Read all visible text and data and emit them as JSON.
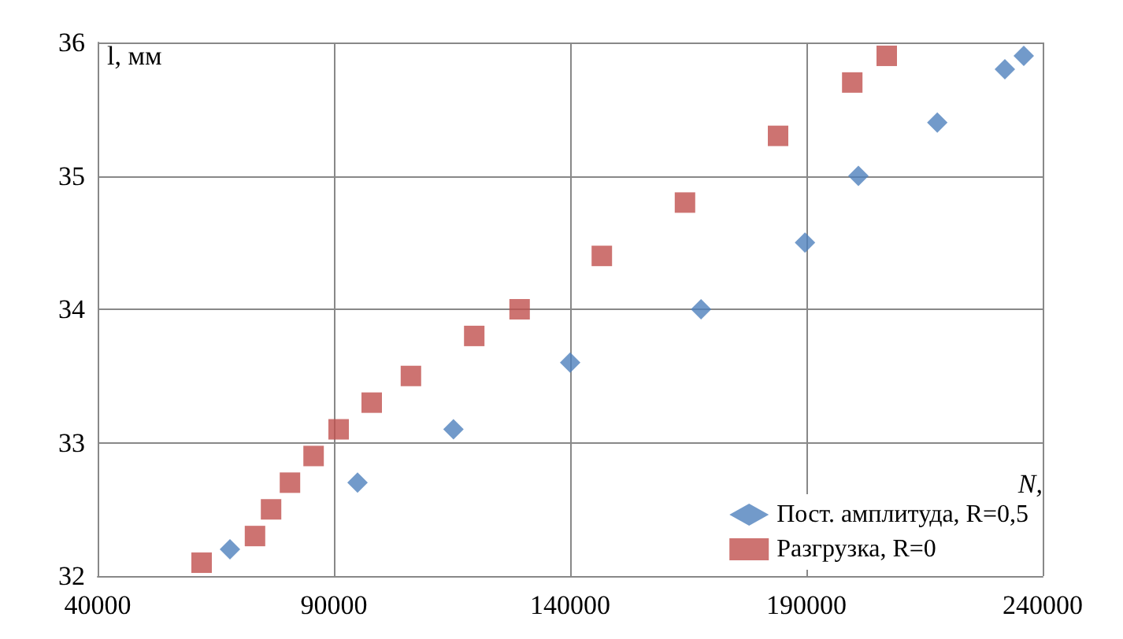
{
  "chart_data": {
    "type": "scatter",
    "xlabel": "N,",
    "ylabel": "l, мм",
    "xlim": [
      40000,
      240000
    ],
    "xticks": [
      40000,
      90000,
      140000,
      190000,
      240000
    ],
    "ylim": [
      32,
      36
    ],
    "yticks": [
      32,
      33,
      34,
      35,
      36
    ],
    "grid": true,
    "legend": "bottom right",
    "series": [
      {
        "name": "Пост. амплитуда, R=0,5",
        "color": "#4f81bd",
        "marker": "diamond",
        "x": [
          68000,
          95000,
          115300,
          140000,
          167700,
          189700,
          201000,
          217700,
          232000,
          236000
        ],
        "values": [
          32.2,
          32.7,
          33.1,
          33.6,
          34.0,
          34.5,
          35.0,
          35.4,
          35.8,
          35.9
        ]
      },
      {
        "name": "Разгрузка, R=0",
        "color": "#c0504d",
        "marker": "square",
        "x": [
          62000,
          73300,
          76700,
          80700,
          85700,
          91000,
          98000,
          106300,
          119700,
          129300,
          146700,
          164300,
          184000,
          199700,
          207000
        ],
        "values": [
          32.1,
          32.3,
          32.5,
          32.7,
          32.9,
          33.1,
          33.3,
          33.5,
          33.8,
          34.0,
          34.4,
          34.8,
          35.3,
          35.7,
          35.9
        ]
      }
    ]
  }
}
